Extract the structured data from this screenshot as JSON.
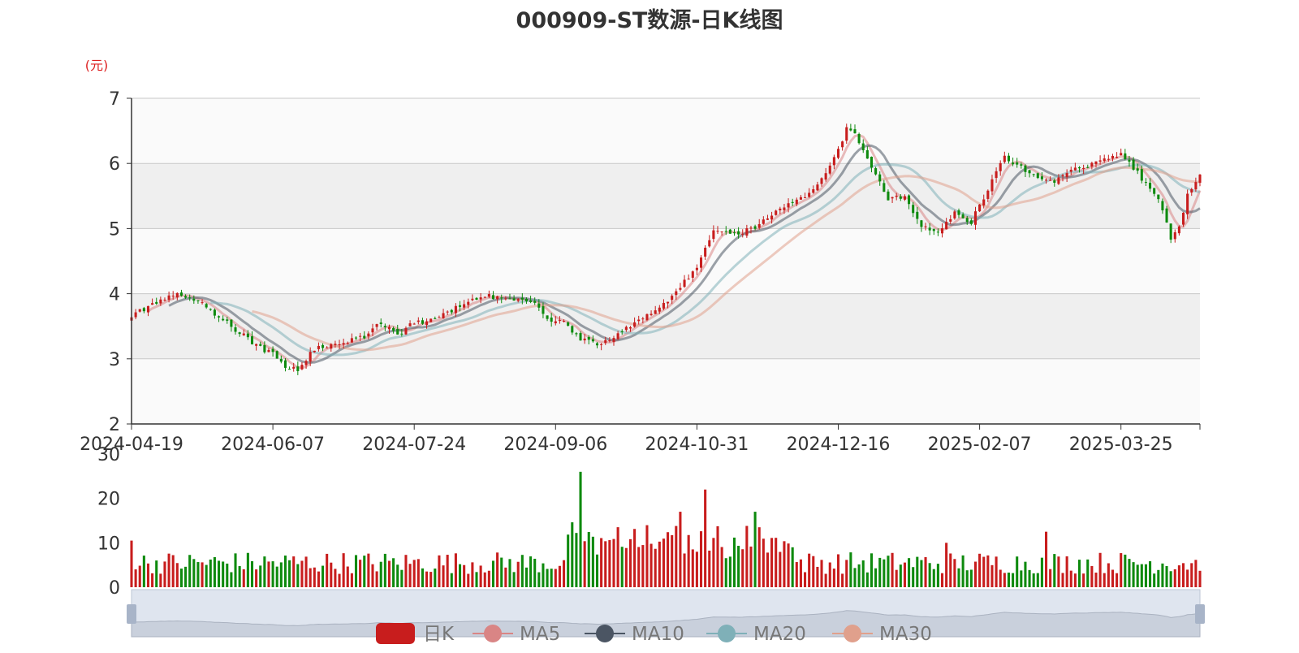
{
  "title": "000909-ST数源-日K线图",
  "colors": {
    "up": "#c81d1d",
    "down": "#0e8a0e",
    "ma5": "#d98585",
    "ma10": "#4b5563",
    "ma20": "#7fb0b8",
    "ma30": "#e0a08c",
    "grid_band": "#efefef"
  },
  "chart_data": [
    {
      "type": "candlestick",
      "title": "000909-ST数源-日K线图",
      "ylabel": "(元)",
      "ylim": [
        2,
        7
      ],
      "yticks": [
        "2",
        "3",
        "4",
        "5",
        "6",
        "7"
      ],
      "x_start": "2024-04-19",
      "xticks": [
        "2024-04-19",
        "2024-06-07",
        "2024-07-24",
        "2024-09-06",
        "2024-10-31",
        "2024-12-16",
        "2025-02-07",
        "2025-03-25"
      ],
      "xtick_index": [
        0,
        34,
        68,
        102,
        136,
        170,
        204,
        238
      ],
      "n": 258,
      "legend": [
        "日K",
        "MA5",
        "MA10",
        "MA20",
        "MA30"
      ],
      "legend_position": "bottom",
      "close_anchors": [
        [
          0,
          3.65
        ],
        [
          6,
          3.88
        ],
        [
          12,
          4.0
        ],
        [
          18,
          3.8
        ],
        [
          24,
          3.5
        ],
        [
          30,
          3.2
        ],
        [
          34,
          3.08
        ],
        [
          37,
          2.88
        ],
        [
          40,
          2.85
        ],
        [
          44,
          3.15
        ],
        [
          50,
          3.22
        ],
        [
          56,
          3.35
        ],
        [
          60,
          3.55
        ],
        [
          64,
          3.38
        ],
        [
          68,
          3.55
        ],
        [
          72,
          3.6
        ],
        [
          76,
          3.7
        ],
        [
          80,
          3.85
        ],
        [
          84,
          3.98
        ],
        [
          88,
          3.95
        ],
        [
          92,
          3.92
        ],
        [
          96,
          3.9
        ],
        [
          100,
          3.62
        ],
        [
          104,
          3.55
        ],
        [
          108,
          3.3
        ],
        [
          112,
          3.22
        ],
        [
          116,
          3.32
        ],
        [
          120,
          3.5
        ],
        [
          124,
          3.65
        ],
        [
          128,
          3.85
        ],
        [
          130,
          3.95
        ],
        [
          136,
          4.4
        ],
        [
          140,
          5.0
        ],
        [
          144,
          4.9
        ],
        [
          150,
          5.0
        ],
        [
          154,
          5.2
        ],
        [
          158,
          5.35
        ],
        [
          162,
          5.5
        ],
        [
          166,
          5.75
        ],
        [
          170,
          6.2
        ],
        [
          172,
          6.55
        ],
        [
          174,
          6.45
        ],
        [
          178,
          5.95
        ],
        [
          182,
          5.45
        ],
        [
          186,
          5.5
        ],
        [
          190,
          5.05
        ],
        [
          194,
          4.95
        ],
        [
          198,
          5.25
        ],
        [
          202,
          5.1
        ],
        [
          206,
          5.6
        ],
        [
          210,
          6.1
        ],
        [
          214,
          5.95
        ],
        [
          218,
          5.75
        ],
        [
          222,
          5.7
        ],
        [
          226,
          5.9
        ],
        [
          230,
          5.95
        ],
        [
          234,
          6.05
        ],
        [
          238,
          6.15
        ],
        [
          242,
          5.85
        ],
        [
          246,
          5.55
        ],
        [
          248,
          5.3
        ],
        [
          250,
          4.85
        ],
        [
          252,
          5.05
        ],
        [
          254,
          5.5
        ],
        [
          257,
          5.85
        ]
      ],
      "volume": {
        "ylim": [
          0,
          30
        ],
        "yticks": [
          "0",
          "10",
          "20",
          "30"
        ],
        "peaks": [
          [
            108,
            26
          ],
          [
            138,
            22
          ],
          [
            132,
            17
          ],
          [
            150,
            17
          ],
          [
            220,
            12.5
          ],
          [
            0,
            10.5
          ],
          [
            123,
            9.5
          ],
          [
            196,
            10
          ]
        ]
      }
    }
  ]
}
